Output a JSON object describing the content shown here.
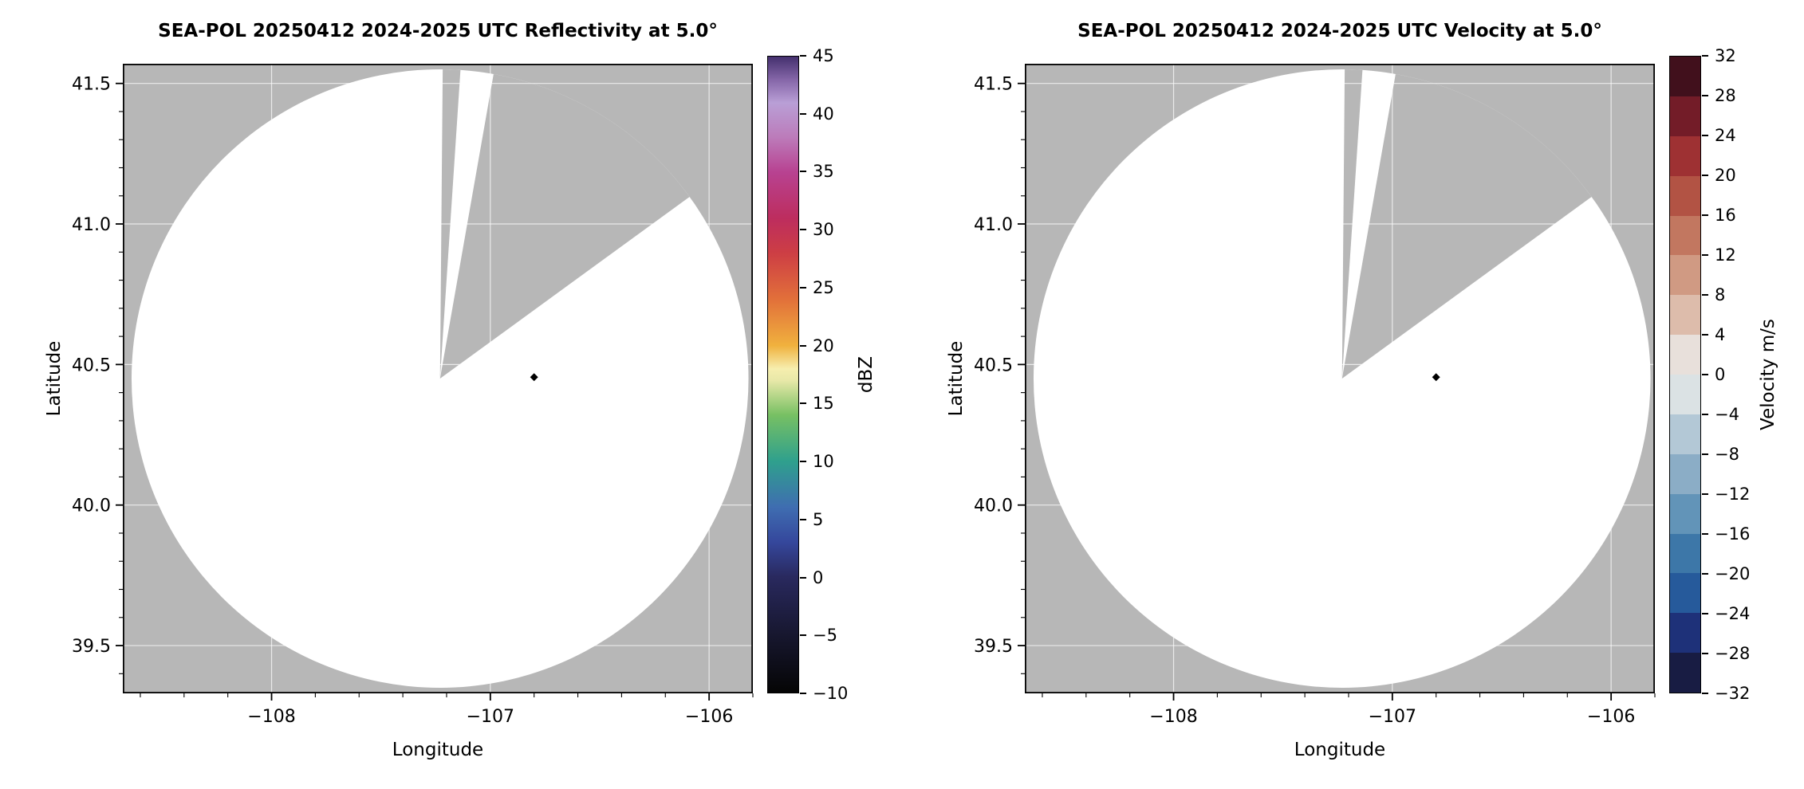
{
  "figure": {
    "background": "#ffffff",
    "no_data_color": "#b7b7b7",
    "scan_area_color": "#ffffff"
  },
  "chart_data": [
    {
      "type": "heatmap",
      "title": "SEA-POL 20250412 2024-2025 UTC Reflectivity at 5.0°",
      "xlabel": "Longitude",
      "ylabel": "Latitude",
      "xlim": [
        -108.68,
        -105.8
      ],
      "ylim": [
        39.33,
        41.57
      ],
      "x_ticks": [
        -108,
        -107,
        -106
      ],
      "x_tick_labels": [
        "−108",
        "−107",
        "−106"
      ],
      "y_ticks": [
        39.5,
        40.0,
        40.5,
        41.0,
        41.5
      ],
      "y_tick_labels": [
        "39.5",
        "40.0",
        "40.5",
        "41.0",
        "41.5"
      ],
      "x_minor_step": 0.2,
      "y_minor_step": 0.1,
      "grid": true,
      "no_data_color": "#b7b7b7",
      "scan_area_color": "#ffffff",
      "radar": {
        "center_lon": -107.23,
        "center_lat": 40.45,
        "radius_lon_deg": 1.41,
        "radius_lat_deg": 1.1,
        "missing_sector_azimuths_deg": [
          [
            0.5,
            3.8
          ],
          [
            10,
            54
          ]
        ],
        "marker": {
          "lon": -106.8,
          "lat": 40.455,
          "shape": "diamond",
          "color": "#000000"
        }
      },
      "data_summary": "Scan area blank (no reflectivity echoes shown); gray = no data, including two wedge-shaped missing sectors north and northeast of the radar; black diamond marks a site east of radar center.",
      "colorbar": {
        "label": "dBZ",
        "type": "continuous",
        "min": -10,
        "max": 45,
        "ticks": [
          -10,
          -5,
          0,
          5,
          10,
          15,
          20,
          25,
          30,
          35,
          40,
          45
        ],
        "tick_labels": [
          "−10",
          "−5",
          "0",
          "5",
          "10",
          "15",
          "20",
          "25",
          "30",
          "35",
          "40",
          "45"
        ],
        "gradient_stops": [
          {
            "value": -10,
            "color": "#050505"
          },
          {
            "value": -5,
            "color": "#17172f"
          },
          {
            "value": 0,
            "color": "#29295e"
          },
          {
            "value": 3,
            "color": "#35479c"
          },
          {
            "value": 6,
            "color": "#3f6db1"
          },
          {
            "value": 10,
            "color": "#2fa08d"
          },
          {
            "value": 14,
            "color": "#77c063"
          },
          {
            "value": 17,
            "color": "#e8e8a8"
          },
          {
            "value": 18,
            "color": "#f6eeae"
          },
          {
            "value": 20,
            "color": "#f0b13e"
          },
          {
            "value": 24,
            "color": "#e2703a"
          },
          {
            "value": 28,
            "color": "#cd3e44"
          },
          {
            "value": 31,
            "color": "#bd2d5e"
          },
          {
            "value": 35,
            "color": "#b84291"
          },
          {
            "value": 38,
            "color": "#bc7bba"
          },
          {
            "value": 41,
            "color": "#b99fd6"
          },
          {
            "value": 43,
            "color": "#8566a8"
          },
          {
            "value": 45,
            "color": "#44306e"
          }
        ]
      }
    },
    {
      "type": "heatmap",
      "title": "SEA-POL 20250412 2024-2025 UTC Velocity at 5.0°",
      "xlabel": "Longitude",
      "ylabel": "Latitude",
      "xlim": [
        -108.68,
        -105.8
      ],
      "ylim": [
        39.33,
        41.57
      ],
      "x_ticks": [
        -108,
        -107,
        -106
      ],
      "x_tick_labels": [
        "−108",
        "−107",
        "−106"
      ],
      "y_ticks": [
        39.5,
        40.0,
        40.5,
        41.0,
        41.5
      ],
      "y_tick_labels": [
        "39.5",
        "40.0",
        "40.5",
        "41.0",
        "41.5"
      ],
      "x_minor_step": 0.2,
      "y_minor_step": 0.1,
      "grid": true,
      "no_data_color": "#b7b7b7",
      "scan_area_color": "#ffffff",
      "radar": {
        "center_lon": -107.23,
        "center_lat": 40.45,
        "radius_lon_deg": 1.41,
        "radius_lat_deg": 1.1,
        "missing_sector_azimuths_deg": [
          [
            0.5,
            3.8
          ],
          [
            10,
            54
          ]
        ],
        "marker": {
          "lon": -106.8,
          "lat": 40.455,
          "shape": "diamond",
          "color": "#000000"
        }
      },
      "data_summary": "Scan area blank (no velocity echoes shown); gray = no data, including two wedge-shaped missing sectors north and northeast of the radar; black diamond marks a site east of radar center.",
      "colorbar": {
        "label": "Velocity m/s",
        "type": "discrete",
        "min": -32,
        "max": 32,
        "ticks": [
          -32,
          -28,
          -24,
          -20,
          -16,
          -12,
          -8,
          -4,
          0,
          4,
          8,
          12,
          16,
          20,
          24,
          28,
          32
        ],
        "tick_labels": [
          "−32",
          "−28",
          "−24",
          "−20",
          "−16",
          "−12",
          "−8",
          "−4",
          "0",
          "4",
          "8",
          "12",
          "16",
          "20",
          "24",
          "28",
          "32"
        ],
        "segments": [
          {
            "range": [
              -32,
              -28
            ],
            "color": "#181c43"
          },
          {
            "range": [
              -28,
              -24
            ],
            "color": "#1e3179"
          },
          {
            "range": [
              -24,
              -20
            ],
            "color": "#265a9b"
          },
          {
            "range": [
              -20,
              -16
            ],
            "color": "#3d77a8"
          },
          {
            "range": [
              -16,
              -12
            ],
            "color": "#6294b8"
          },
          {
            "range": [
              -12,
              -8
            ],
            "color": "#8badc6"
          },
          {
            "range": [
              -8,
              -4
            ],
            "color": "#b3c8d6"
          },
          {
            "range": [
              -4,
              0
            ],
            "color": "#dbe2e4"
          },
          {
            "range": [
              0,
              4
            ],
            "color": "#e8e0db"
          },
          {
            "range": [
              4,
              8
            ],
            "color": "#ddbcab"
          },
          {
            "range": [
              8,
              12
            ],
            "color": "#d09a83"
          },
          {
            "range": [
              12,
              16
            ],
            "color": "#c27760"
          },
          {
            "range": [
              16,
              20
            ],
            "color": "#b25344"
          },
          {
            "range": [
              20,
              24
            ],
            "color": "#9e3133"
          },
          {
            "range": [
              24,
              28
            ],
            "color": "#731c28"
          },
          {
            "range": [
              28,
              32
            ],
            "color": "#41101c"
          }
        ]
      }
    }
  ]
}
